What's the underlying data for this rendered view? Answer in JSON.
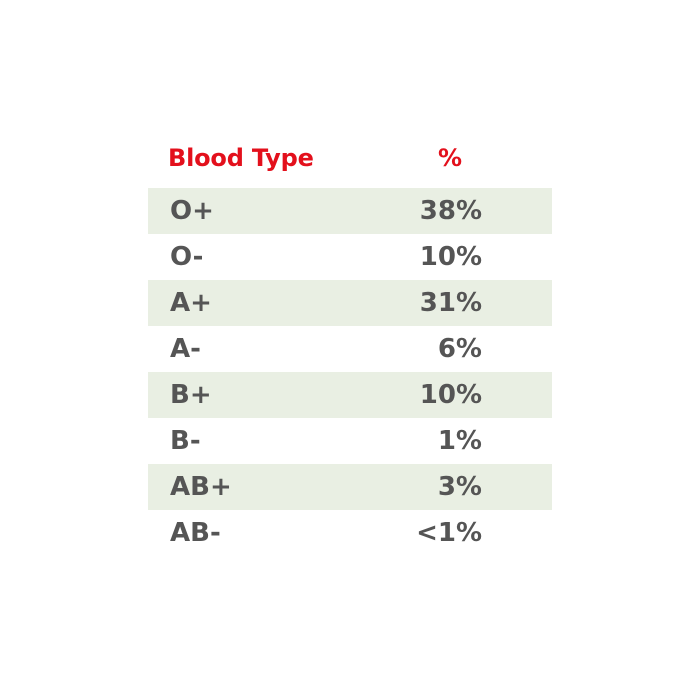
{
  "table": {
    "header": {
      "type_label": "Blood Type",
      "percent_label": "%"
    },
    "rows": [
      {
        "type": "O+",
        "percent": "38%"
      },
      {
        "type": "O-",
        "percent": "10%"
      },
      {
        "type": "A+",
        "percent": "31%"
      },
      {
        "type": "A-",
        "percent": "6%"
      },
      {
        "type": "B+",
        "percent": "10%"
      },
      {
        "type": "B-",
        "percent": "1%"
      },
      {
        "type": "AB+",
        "percent": "3%"
      },
      {
        "type": "AB-",
        "percent": "<1%"
      }
    ]
  },
  "colors": {
    "header_text": "#e3101c",
    "body_text": "#555555",
    "row_shade": "#e9efe3",
    "background": "#ffffff"
  }
}
